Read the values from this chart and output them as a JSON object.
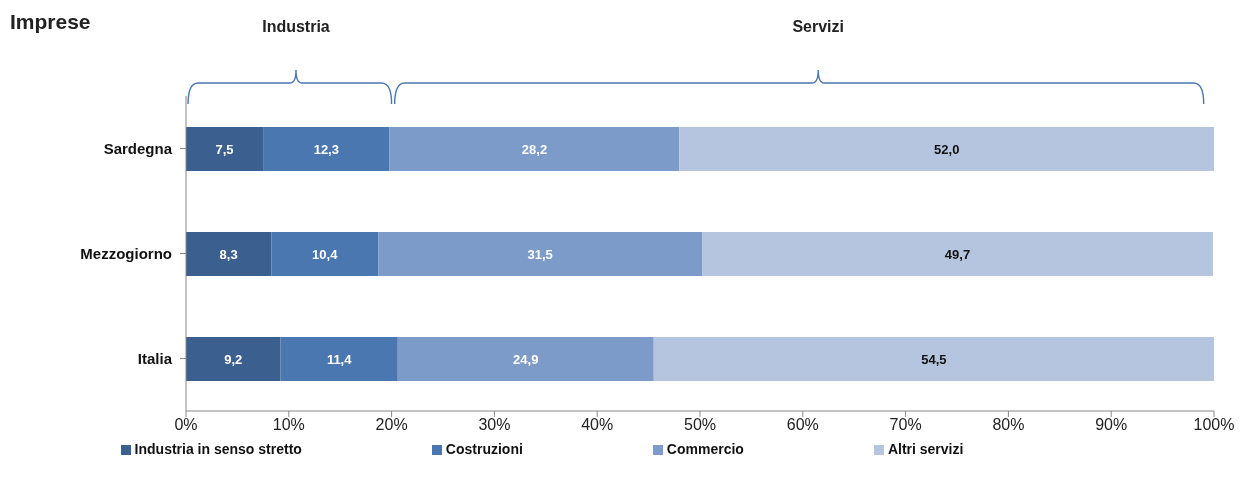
{
  "chart_data": {
    "type": "bar",
    "orientation": "horizontal",
    "stacked": true,
    "title": "Imprese",
    "categories": [
      "Sardegna",
      "Mezzogiorno",
      "Italia"
    ],
    "series": [
      {
        "name": "Industria in senso stretto",
        "color": "#3b5f8e",
        "values": [
          7.5,
          8.3,
          9.2
        ],
        "value_labels": [
          "7,5",
          "8,3",
          "9,2"
        ]
      },
      {
        "name": "Costruzioni",
        "color": "#4a77b0",
        "values": [
          12.3,
          10.4,
          11.4
        ],
        "value_labels": [
          "12,3",
          "10,4",
          "11,4"
        ]
      },
      {
        "name": "Commercio",
        "color": "#7c9bc9",
        "values": [
          28.2,
          31.5,
          24.9
        ],
        "value_labels": [
          "28,2",
          "31,5",
          "24,9"
        ]
      },
      {
        "name": "Altri servizi",
        "color": "#b6c5df",
        "values": [
          52.0,
          49.7,
          54.5
        ],
        "value_labels": [
          "52,0",
          "49,7",
          "54,5"
        ]
      }
    ],
    "xlim": [
      0,
      100
    ],
    "xticks": [
      {
        "value": 0,
        "label": "0%"
      },
      {
        "value": 10,
        "label": "10%"
      },
      {
        "value": 20,
        "label": "20%"
      },
      {
        "value": 30,
        "label": "30%"
      },
      {
        "value": 40,
        "label": "40%"
      },
      {
        "value": 50,
        "label": "50%"
      },
      {
        "value": 60,
        "label": "60%"
      },
      {
        "value": 70,
        "label": "70%"
      },
      {
        "value": 80,
        "label": "80%"
      },
      {
        "value": 90,
        "label": "90%"
      },
      {
        "value": 100,
        "label": "100%"
      }
    ],
    "annotations": [
      "Industria",
      "Servizi"
    ],
    "legend": "bottom"
  }
}
